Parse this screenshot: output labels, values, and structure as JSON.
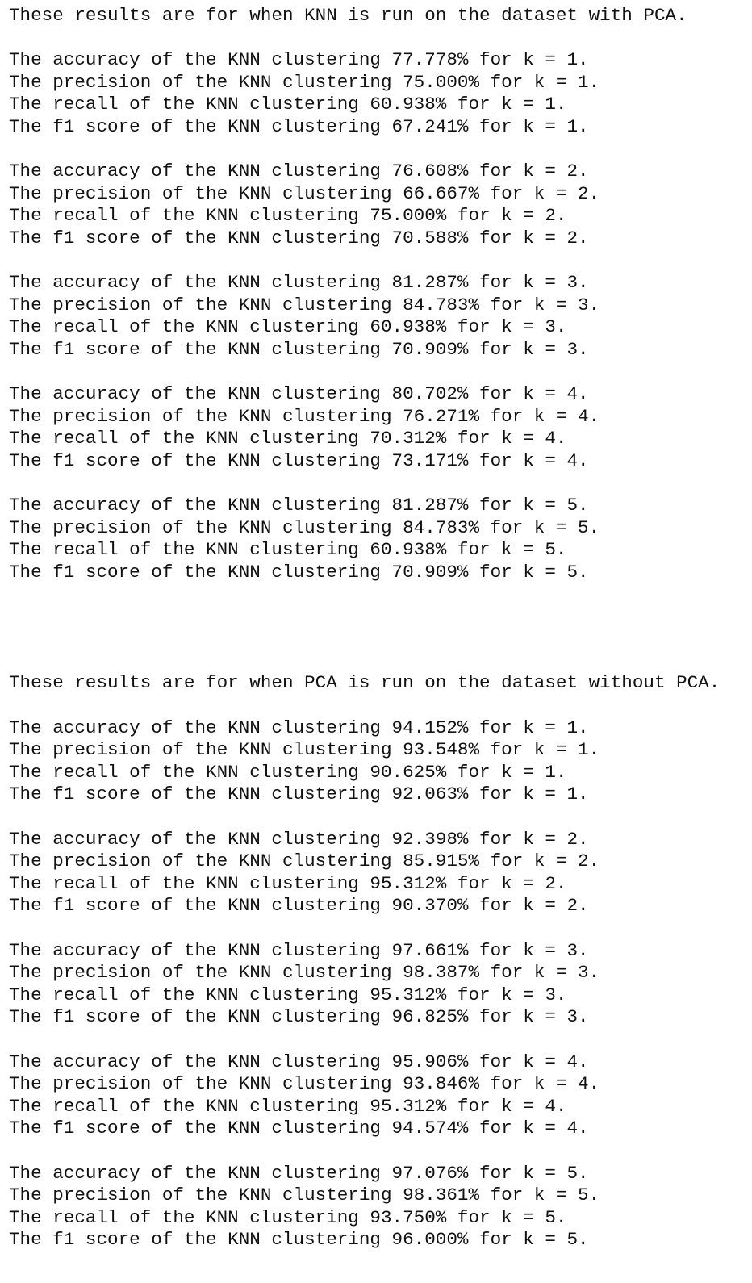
{
  "sections": [
    {
      "header": "These results are for when KNN is run on the dataset with PCA.",
      "groups": [
        [
          "The accuracy of the KNN clustering 77.778% for k = 1.",
          "The precision of the KNN clustering 75.000% for k = 1.",
          "The recall of the KNN clustering 60.938% for k = 1.",
          "The f1 score of the KNN clustering 67.241% for k = 1."
        ],
        [
          "The accuracy of the KNN clustering 76.608% for k = 2.",
          "The precision of the KNN clustering 66.667% for k = 2.",
          "The recall of the KNN clustering 75.000% for k = 2.",
          "The f1 score of the KNN clustering 70.588% for k = 2."
        ],
        [
          "The accuracy of the KNN clustering 81.287% for k = 3.",
          "The precision of the KNN clustering 84.783% for k = 3.",
          "The recall of the KNN clustering 60.938% for k = 3.",
          "The f1 score of the KNN clustering 70.909% for k = 3."
        ],
        [
          "The accuracy of the KNN clustering 80.702% for k = 4.",
          "The precision of the KNN clustering 76.271% for k = 4.",
          "The recall of the KNN clustering 70.312% for k = 4.",
          "The f1 score of the KNN clustering 73.171% for k = 4."
        ],
        [
          "The accuracy of the KNN clustering 81.287% for k = 5.",
          "The precision of the KNN clustering 84.783% for k = 5.",
          "The recall of the KNN clustering 60.938% for k = 5.",
          "The f1 score of the KNN clustering 70.909% for k = 5."
        ]
      ]
    },
    {
      "header": "These results are for when PCA is run on the dataset without PCA.",
      "groups": [
        [
          "The accuracy of the KNN clustering 94.152% for k = 1.",
          "The precision of the KNN clustering 93.548% for k = 1.",
          "The recall of the KNN clustering 90.625% for k = 1.",
          "The f1 score of the KNN clustering 92.063% for k = 1."
        ],
        [
          "The accuracy of the KNN clustering 92.398% for k = 2.",
          "The precision of the KNN clustering 85.915% for k = 2.",
          "The recall of the KNN clustering 95.312% for k = 2.",
          "The f1 score of the KNN clustering 90.370% for k = 2."
        ],
        [
          "The accuracy of the KNN clustering 97.661% for k = 3.",
          "The precision of the KNN clustering 98.387% for k = 3.",
          "The recall of the KNN clustering 95.312% for k = 3.",
          "The f1 score of the KNN clustering 96.825% for k = 3."
        ],
        [
          "The accuracy of the KNN clustering 95.906% for k = 4.",
          "The precision of the KNN clustering 93.846% for k = 4.",
          "The recall of the KNN clustering 95.312% for k = 4.",
          "The f1 score of the KNN clustering 94.574% for k = 4."
        ],
        [
          "The accuracy of the KNN clustering 97.076% for k = 5.",
          "The precision of the KNN clustering 98.361% for k = 5.",
          "The recall of the KNN clustering 93.750% for k = 5.",
          "The f1 score of the KNN clustering 96.000% for k = 5."
        ]
      ]
    }
  ]
}
